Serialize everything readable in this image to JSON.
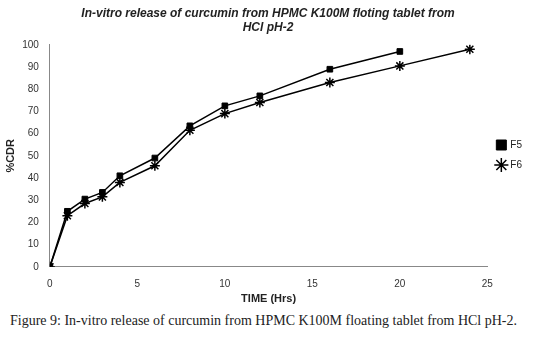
{
  "chart_data": {
    "type": "line",
    "title": "In-vitro release of curcumin from HPMC K100M floting tablet from HCl pH-2",
    "caption": "Figure 9: In-vitro release of curcumin from HPMC K100M floating tablet from HCl pH-2.",
    "x_label": "TIME (Hrs)",
    "y_label": "%CDR",
    "x": [
      0,
      1,
      2,
      3,
      4,
      6,
      8,
      10,
      12,
      16,
      20,
      24
    ],
    "series": [
      {
        "name": "F5",
        "color": "#000000",
        "marker": "square",
        "values": [
          0,
          25,
          30.5,
          33.5,
          41,
          49,
          63.5,
          72.5,
          77,
          89,
          97,
          null
        ]
      },
      {
        "name": "F6",
        "color": "#000000",
        "marker": "star",
        "values": [
          0,
          23,
          28.5,
          31.5,
          38,
          45.5,
          61.5,
          69,
          74,
          83,
          90.5,
          98
        ]
      }
    ],
    "xlim": [
      0,
      25
    ],
    "xticks": [
      0,
      5,
      10,
      15,
      20,
      25
    ],
    "ylim": [
      0,
      100
    ],
    "yticks": [
      0,
      10,
      20,
      30,
      40,
      50,
      60,
      70,
      80,
      90,
      100
    ],
    "grid": false,
    "legend": "right"
  }
}
